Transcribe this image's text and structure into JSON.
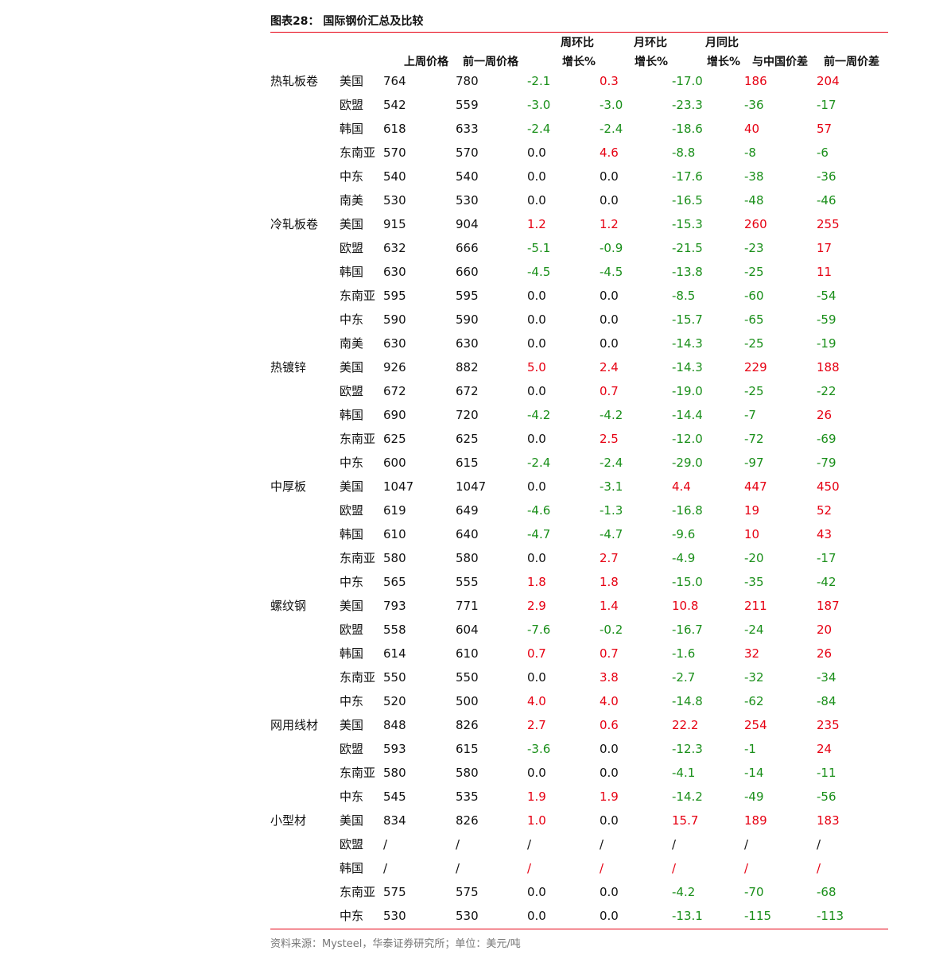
{
  "header": {
    "title": "图表28：  国际钢价汇总及比较"
  },
  "palette": {
    "red": "#e60012",
    "green": "#1a8f1a",
    "black": "#111111"
  },
  "table": {
    "header_top": [
      "周环比",
      "月环比",
      "月同比"
    ],
    "header_bottom": [
      "上周价格",
      "前一周价格",
      "增长%",
      "增长%",
      "增长%",
      "与中国价差",
      "前一周价差"
    ],
    "groups": [
      {
        "name": "热轧板卷",
        "rows": [
          {
            "region": "美国",
            "cells": [
              "764",
              "780",
              "-2.1",
              "0.3",
              "-17.0",
              "186",
              "204"
            ],
            "colors": [
              "green",
              "red",
              "green",
              "red",
              "red"
            ]
          },
          {
            "region": "欧盟",
            "cells": [
              "542",
              "559",
              "-3.0",
              "-3.0",
              "-23.3",
              "-36",
              "-17"
            ],
            "colors": [
              "green",
              "green",
              "green",
              "green",
              "green"
            ]
          },
          {
            "region": "韩国",
            "cells": [
              "618",
              "633",
              "-2.4",
              "-2.4",
              "-18.6",
              "40",
              "57"
            ],
            "colors": [
              "green",
              "green",
              "green",
              "red",
              "red"
            ]
          },
          {
            "region": "东南亚",
            "cells": [
              "570",
              "570",
              "0.0",
              "4.6",
              "-8.8",
              "-8",
              "-6"
            ],
            "colors": [
              "black",
              "red",
              "green",
              "green",
              "green"
            ]
          },
          {
            "region": "中东",
            "cells": [
              "540",
              "540",
              "0.0",
              "0.0",
              "-17.6",
              "-38",
              "-36"
            ],
            "colors": [
              "black",
              "black",
              "green",
              "green",
              "green"
            ]
          },
          {
            "region": "南美",
            "cells": [
              "530",
              "530",
              "0.0",
              "0.0",
              "-16.5",
              "-48",
              "-46"
            ],
            "colors": [
              "black",
              "black",
              "green",
              "green",
              "green"
            ]
          }
        ]
      },
      {
        "name": "冷轧板卷",
        "rows": [
          {
            "region": "美国",
            "cells": [
              "915",
              "904",
              "1.2",
              "1.2",
              "-15.3",
              "260",
              "255"
            ],
            "colors": [
              "red",
              "red",
              "green",
              "red",
              "red"
            ]
          },
          {
            "region": "欧盟",
            "cells": [
              "632",
              "666",
              "-5.1",
              "-0.9",
              "-21.5",
              "-23",
              "17"
            ],
            "colors": [
              "green",
              "green",
              "green",
              "green",
              "red"
            ]
          },
          {
            "region": "韩国",
            "cells": [
              "630",
              "660",
              "-4.5",
              "-4.5",
              "-13.8",
              "-25",
              "11"
            ],
            "colors": [
              "green",
              "green",
              "green",
              "green",
              "red"
            ]
          },
          {
            "region": "东南亚",
            "cells": [
              "595",
              "595",
              "0.0",
              "0.0",
              "-8.5",
              "-60",
              "-54"
            ],
            "colors": [
              "black",
              "black",
              "green",
              "green",
              "green"
            ]
          },
          {
            "region": "中东",
            "cells": [
              "590",
              "590",
              "0.0",
              "0.0",
              "-15.7",
              "-65",
              "-59"
            ],
            "colors": [
              "black",
              "black",
              "green",
              "green",
              "green"
            ]
          },
          {
            "region": "南美",
            "cells": [
              "630",
              "630",
              "0.0",
              "0.0",
              "-14.3",
              "-25",
              "-19"
            ],
            "colors": [
              "black",
              "black",
              "green",
              "green",
              "green"
            ]
          }
        ]
      },
      {
        "name": "热镀锌",
        "rows": [
          {
            "region": "美国",
            "cells": [
              "926",
              "882",
              "5.0",
              "2.4",
              "-14.3",
              "229",
              "188"
            ],
            "colors": [
              "red",
              "red",
              "green",
              "red",
              "red"
            ]
          },
          {
            "region": "欧盟",
            "cells": [
              "672",
              "672",
              "0.0",
              "0.7",
              "-19.0",
              "-25",
              "-22"
            ],
            "colors": [
              "black",
              "red",
              "green",
              "green",
              "green"
            ]
          },
          {
            "region": "韩国",
            "cells": [
              "690",
              "720",
              "-4.2",
              "-4.2",
              "-14.4",
              "-7",
              "26"
            ],
            "colors": [
              "green",
              "green",
              "green",
              "green",
              "red"
            ]
          },
          {
            "region": "东南亚",
            "cells": [
              "625",
              "625",
              "0.0",
              "2.5",
              "-12.0",
              "-72",
              "-69"
            ],
            "colors": [
              "black",
              "red",
              "green",
              "green",
              "green"
            ]
          },
          {
            "region": "中东",
            "cells": [
              "600",
              "615",
              "-2.4",
              "-2.4",
              "-29.0",
              "-97",
              "-79"
            ],
            "colors": [
              "green",
              "green",
              "green",
              "green",
              "green"
            ]
          }
        ]
      },
      {
        "name": "中厚板",
        "rows": [
          {
            "region": "美国",
            "cells": [
              "1047",
              "1047",
              "0.0",
              "-3.1",
              "4.4",
              "447",
              "450"
            ],
            "colors": [
              "black",
              "green",
              "red",
              "red",
              "red"
            ]
          },
          {
            "region": "欧盟",
            "cells": [
              "619",
              "649",
              "-4.6",
              "-1.3",
              "-16.8",
              "19",
              "52"
            ],
            "colors": [
              "green",
              "green",
              "green",
              "red",
              "red"
            ]
          },
          {
            "region": "韩国",
            "cells": [
              "610",
              "640",
              "-4.7",
              "-4.7",
              "-9.6",
              "10",
              "43"
            ],
            "colors": [
              "green",
              "green",
              "green",
              "red",
              "red"
            ]
          },
          {
            "region": "东南亚",
            "cells": [
              "580",
              "580",
              "0.0",
              "2.7",
              "-4.9",
              "-20",
              "-17"
            ],
            "colors": [
              "black",
              "red",
              "green",
              "green",
              "green"
            ]
          },
          {
            "region": "中东",
            "cells": [
              "565",
              "555",
              "1.8",
              "1.8",
              "-15.0",
              "-35",
              "-42"
            ],
            "colors": [
              "red",
              "red",
              "green",
              "green",
              "green"
            ]
          }
        ]
      },
      {
        "name": "螺纹钢",
        "rows": [
          {
            "region": "美国",
            "cells": [
              "793",
              "771",
              "2.9",
              "1.4",
              "10.8",
              "211",
              "187"
            ],
            "colors": [
              "red",
              "red",
              "red",
              "red",
              "red"
            ]
          },
          {
            "region": "欧盟",
            "cells": [
              "558",
              "604",
              "-7.6",
              "-0.2",
              "-16.7",
              "-24",
              "20"
            ],
            "colors": [
              "green",
              "green",
              "green",
              "green",
              "red"
            ]
          },
          {
            "region": "韩国",
            "cells": [
              "614",
              "610",
              "0.7",
              "0.7",
              "-1.6",
              "32",
              "26"
            ],
            "colors": [
              "red",
              "red",
              "green",
              "red",
              "red"
            ]
          },
          {
            "region": "东南亚",
            "cells": [
              "550",
              "550",
              "0.0",
              "3.8",
              "-2.7",
              "-32",
              "-34"
            ],
            "colors": [
              "black",
              "red",
              "green",
              "green",
              "green"
            ]
          },
          {
            "region": "中东",
            "cells": [
              "520",
              "500",
              "4.0",
              "4.0",
              "-14.8",
              "-62",
              "-84"
            ],
            "colors": [
              "red",
              "red",
              "green",
              "green",
              "green"
            ]
          }
        ]
      },
      {
        "name": "网用线材",
        "rows": [
          {
            "region": "美国",
            "cells": [
              "848",
              "826",
              "2.7",
              "0.6",
              "22.2",
              "254",
              "235"
            ],
            "colors": [
              "red",
              "red",
              "red",
              "red",
              "red"
            ]
          },
          {
            "region": "欧盟",
            "cells": [
              "593",
              "615",
              "-3.6",
              "0.0",
              "-12.3",
              "-1",
              "24"
            ],
            "colors": [
              "green",
              "black",
              "green",
              "green",
              "red"
            ]
          },
          {
            "region": "东南亚",
            "cells": [
              "580",
              "580",
              "0.0",
              "0.0",
              "-4.1",
              "-14",
              "-11"
            ],
            "colors": [
              "black",
              "black",
              "green",
              "green",
              "green"
            ]
          },
          {
            "region": "中东",
            "cells": [
              "545",
              "535",
              "1.9",
              "1.9",
              "-14.2",
              "-49",
              "-56"
            ],
            "colors": [
              "red",
              "red",
              "green",
              "green",
              "green"
            ]
          }
        ]
      },
      {
        "name": "小型材",
        "rows": [
          {
            "region": "美国",
            "cells": [
              "834",
              "826",
              "1.0",
              "0.0",
              "15.7",
              "189",
              "183"
            ],
            "colors": [
              "red",
              "black",
              "red",
              "red",
              "red"
            ]
          },
          {
            "region": "欧盟",
            "cells": [
              "/",
              "/",
              "/",
              "/",
              "/",
              "/",
              "/"
            ],
            "colors": [
              "black",
              "black",
              "black",
              "black",
              "black"
            ]
          },
          {
            "region": "韩国",
            "cells": [
              "/",
              "/",
              "/",
              "/",
              "/",
              "/",
              "/"
            ],
            "colors": [
              "red",
              "red",
              "red",
              "red",
              "red"
            ]
          },
          {
            "region": "东南亚",
            "cells": [
              "575",
              "575",
              "0.0",
              "0.0",
              "-4.2",
              "-70",
              "-68"
            ],
            "colors": [
              "black",
              "black",
              "green",
              "green",
              "green"
            ]
          },
          {
            "region": "中东",
            "cells": [
              "530",
              "530",
              "0.0",
              "0.0",
              "-13.1",
              "-115",
              "-113"
            ],
            "colors": [
              "black",
              "black",
              "green",
              "green",
              "green"
            ]
          }
        ]
      }
    ]
  },
  "footer": {
    "source": "资料来源：Mysteel，华泰证券研究所；单位：美元/吨"
  }
}
